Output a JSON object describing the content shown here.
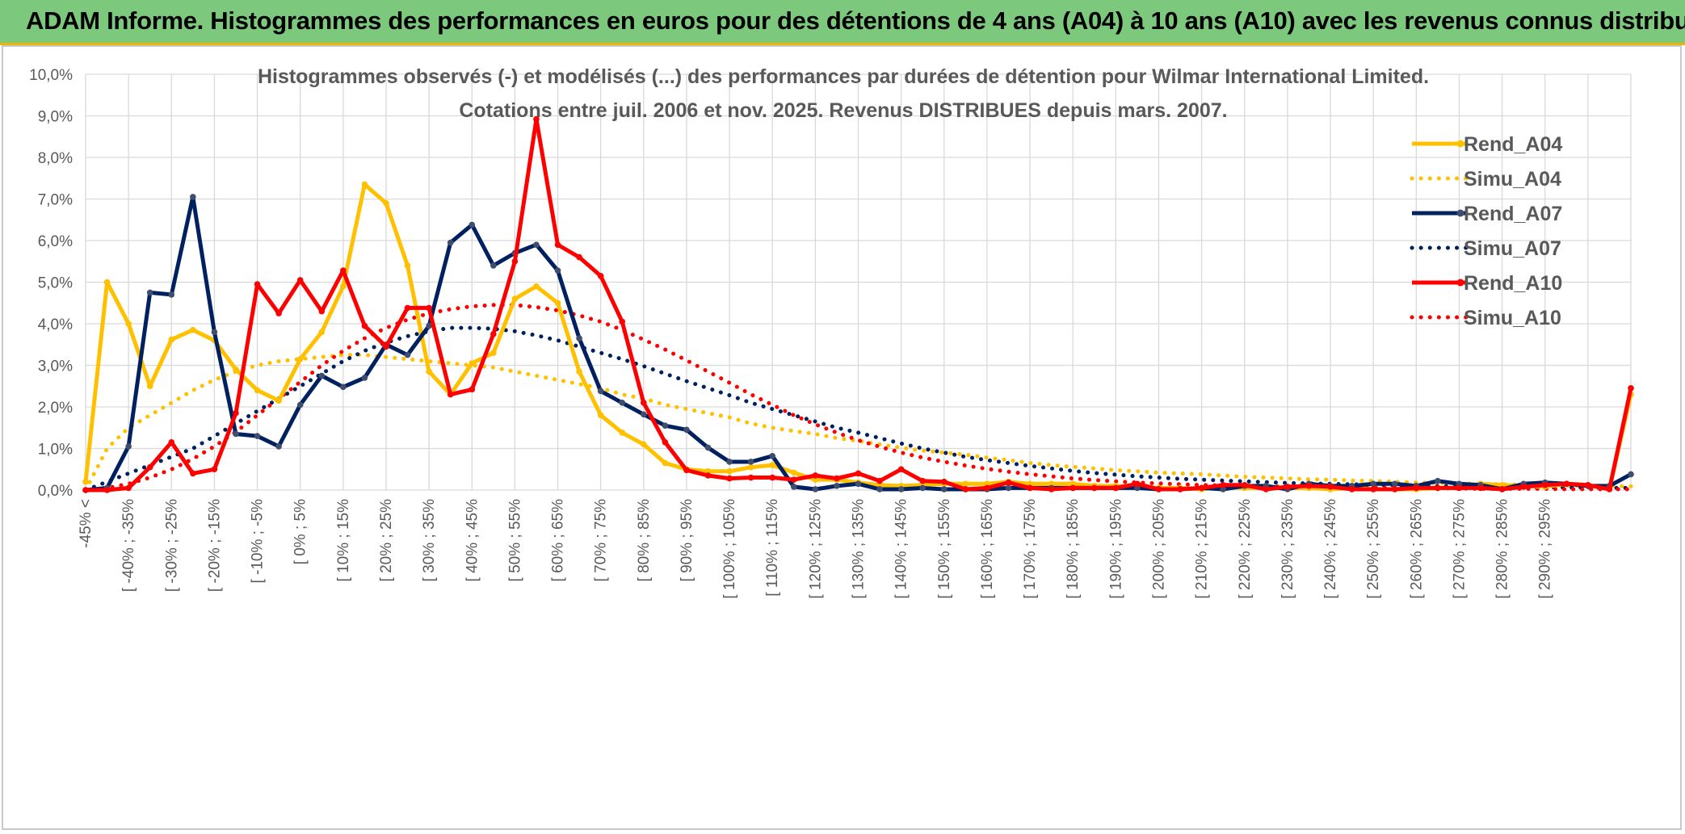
{
  "banner": {
    "title": "ADAM Informe. Histogrammes des performances en euros pour des détentions de 4 ans (A04) à 10 ans (A10) avec les revenus connus distribués"
  },
  "colors": {
    "banner_bg": "#7cc87c",
    "banner_border": "#e9b700",
    "grid": "#d9d9d9",
    "Rend_A04": "#ffc000",
    "Simu_A04": "#ffc000",
    "Rend_A07": "#002060",
    "Simu_A07": "#002060",
    "Rend_A10": "#ff0000",
    "Simu_A10": "#ff0000"
  },
  "chart_data": {
    "type": "line",
    "title": "Histogrammes observés (-) et modélisés (...) des performances par durées de détention pour Wilmar International Limited.",
    "subtitle": "Cotations entre juil. 2006 et nov. 2025. Revenus DISTRIBUES depuis mars. 2007.",
    "ylim": [
      0,
      10
    ],
    "ytick_labels": [
      "0,0%",
      "1,0%",
      "2,0%",
      "3,0%",
      "4,0%",
      "5,0%",
      "6,0%",
      "7,0%",
      "8,0%",
      "9,0%",
      "10,0%"
    ],
    "grid": true,
    "legend_position": "right",
    "x_labels": [
      "-45% <",
      "[ -40% ; -35%",
      "[ -30% ; -25%",
      "[ -20% ; -15%",
      "[ -10% ; -5%",
      "[ 0% ; 5%",
      "[ 10% ; 15%",
      "[ 20% ; 25%",
      "[ 30% ; 35%",
      "[ 40% ; 45%",
      "[ 50% ; 55%",
      "[ 60% ; 65%",
      "[ 70% ; 75%",
      "[ 80% ; 85%",
      "[ 90% ; 95%",
      "[ 100% ; 105%",
      "[ 110% ; 115%",
      "[ 120% ; 125%",
      "[ 130% ; 135%",
      "[ 140% ; 145%",
      "[ 150% ; 155%",
      "[ 160% ; 165%",
      "[ 170% ; 175%",
      "[ 180% ; 185%",
      "[ 190% ; 195%",
      "[ 200% ; 205%",
      "[ 210% ; 215%",
      "[ 220% ; 225%",
      "[ 230% ; 235%",
      "[ 240% ; 245%",
      "[ 250% ; 255%",
      "[ 260% ; 265%",
      "[ 270% ; 275%",
      "[ 280% ; 285%",
      "[ 290% ; 295%"
    ],
    "series": [
      {
        "name": "Rend_A04",
        "style": "solid",
        "values": [
          0.2,
          5.0,
          4.0,
          2.5,
          3.62,
          3.85,
          3.6,
          2.9,
          2.4,
          2.15,
          3.15,
          3.8,
          4.9,
          7.35,
          6.9,
          5.4,
          2.85,
          2.3,
          3.05,
          3.3,
          4.6,
          4.9,
          4.5,
          2.85,
          1.8,
          1.38,
          1.1,
          0.65,
          0.5,
          0.45,
          0.45,
          0.55,
          0.6,
          0.42,
          0.25,
          0.25,
          0.18,
          0.12,
          0.1,
          0.12,
          0.15,
          0.15,
          0.15,
          0.2,
          0.15,
          0.15,
          0.15,
          0.1,
          0.1,
          0.08,
          0.05,
          0.05,
          0.02,
          0.08,
          0.05,
          0.05,
          0.05,
          0.05,
          0.02,
          0.05,
          0.02,
          0.02,
          0.02,
          0.05,
          0.05,
          0.15,
          0.12,
          0.1,
          0.08,
          0.15,
          0.12,
          0.02,
          2.3
        ]
      },
      {
        "name": "Simu_A04",
        "style": "dotted",
        "values": [
          0.0,
          1.0,
          1.5,
          1.8,
          2.1,
          2.4,
          2.65,
          2.85,
          3.0,
          3.1,
          3.15,
          3.2,
          3.25,
          3.25,
          3.2,
          3.15,
          3.1,
          3.05,
          3.0,
          2.95,
          2.85,
          2.75,
          2.65,
          2.55,
          2.45,
          2.3,
          2.2,
          2.05,
          1.95,
          1.85,
          1.75,
          1.6,
          1.5,
          1.42,
          1.35,
          1.25,
          1.18,
          1.1,
          1.02,
          0.95,
          0.9,
          0.85,
          0.78,
          0.72,
          0.65,
          0.6,
          0.56,
          0.52,
          0.48,
          0.45,
          0.42,
          0.4,
          0.38,
          0.35,
          0.32,
          0.3,
          0.28,
          0.26,
          0.25,
          0.23,
          0.22,
          0.2,
          0.18,
          0.17,
          0.16,
          0.15,
          0.14,
          0.13,
          0.12,
          0.11,
          0.1,
          0.1,
          0.09
        ]
      },
      {
        "name": "Rend_A07",
        "style": "solid",
        "values": [
          0.0,
          0.05,
          1.05,
          4.75,
          4.7,
          7.05,
          3.8,
          1.35,
          1.3,
          1.05,
          2.05,
          2.75,
          2.48,
          2.7,
          3.5,
          3.25,
          3.95,
          5.95,
          6.38,
          5.4,
          5.7,
          5.9,
          5.28,
          3.65,
          2.38,
          2.1,
          1.82,
          1.55,
          1.45,
          1.02,
          0.68,
          0.68,
          0.82,
          0.08,
          0.02,
          0.1,
          0.15,
          0.02,
          0.02,
          0.05,
          0.02,
          0.02,
          0.02,
          0.05,
          0.05,
          0.05,
          0.05,
          0.05,
          0.05,
          0.05,
          0.02,
          0.02,
          0.05,
          0.02,
          0.1,
          0.1,
          0.02,
          0.15,
          0.1,
          0.1,
          0.15,
          0.15,
          0.1,
          0.22,
          0.15,
          0.12,
          0.02,
          0.15,
          0.18,
          0.15,
          0.1,
          0.1,
          0.38
        ]
      },
      {
        "name": "Simu_A07",
        "style": "dotted",
        "values": [
          0.0,
          0.2,
          0.4,
          0.6,
          0.8,
          1.0,
          1.3,
          1.6,
          1.9,
          2.2,
          2.5,
          2.8,
          3.1,
          3.35,
          3.55,
          3.7,
          3.82,
          3.9,
          3.9,
          3.88,
          3.82,
          3.72,
          3.6,
          3.45,
          3.3,
          3.15,
          2.98,
          2.8,
          2.62,
          2.45,
          2.28,
          2.1,
          1.95,
          1.8,
          1.65,
          1.5,
          1.38,
          1.25,
          1.12,
          1.0,
          0.9,
          0.8,
          0.72,
          0.65,
          0.58,
          0.52,
          0.46,
          0.41,
          0.37,
          0.33,
          0.3,
          0.27,
          0.25,
          0.23,
          0.21,
          0.19,
          0.17,
          0.16,
          0.15,
          0.14,
          0.13,
          0.12,
          0.11,
          0.1,
          0.09,
          0.08,
          0.08,
          0.07,
          0.07,
          0.06,
          0.06,
          0.05,
          0.05
        ]
      },
      {
        "name": "Rend_A10",
        "style": "solid",
        "values": [
          0.0,
          0.0,
          0.05,
          0.55,
          1.15,
          0.4,
          0.5,
          1.85,
          4.95,
          4.25,
          5.05,
          4.3,
          5.28,
          3.95,
          3.45,
          4.38,
          4.38,
          2.3,
          2.42,
          3.75,
          5.5,
          8.92,
          5.9,
          5.6,
          5.15,
          4.05,
          2.1,
          1.15,
          0.48,
          0.35,
          0.28,
          0.3,
          0.3,
          0.25,
          0.35,
          0.28,
          0.4,
          0.22,
          0.5,
          0.22,
          0.2,
          0.02,
          0.05,
          0.18,
          0.05,
          0.02,
          0.05,
          0.05,
          0.05,
          0.15,
          0.02,
          0.02,
          0.05,
          0.12,
          0.12,
          0.02,
          0.08,
          0.1,
          0.08,
          0.02,
          0.02,
          0.02,
          0.05,
          0.05,
          0.05,
          0.05,
          0.02,
          0.08,
          0.12,
          0.15,
          0.12,
          0.02,
          2.45
        ]
      },
      {
        "name": "Simu_A10",
        "style": "dotted",
        "values": [
          0.0,
          0.05,
          0.15,
          0.3,
          0.5,
          0.75,
          1.05,
          1.4,
          1.8,
          2.2,
          2.6,
          3.0,
          3.35,
          3.65,
          3.9,
          4.1,
          4.25,
          4.35,
          4.42,
          4.45,
          4.45,
          4.4,
          4.32,
          4.2,
          4.05,
          3.85,
          3.62,
          3.38,
          3.12,
          2.85,
          2.58,
          2.3,
          2.05,
          1.8,
          1.58,
          1.38,
          1.2,
          1.04,
          0.9,
          0.78,
          0.68,
          0.59,
          0.51,
          0.44,
          0.38,
          0.33,
          0.28,
          0.24,
          0.21,
          0.18,
          0.16,
          0.14,
          0.12,
          0.11,
          0.1,
          0.09,
          0.08,
          0.07,
          0.06,
          0.06,
          0.05,
          0.05,
          0.04,
          0.04,
          0.04,
          0.03,
          0.03,
          0.03,
          0.03,
          0.02,
          0.02,
          0.02,
          0.02
        ]
      }
    ]
  }
}
